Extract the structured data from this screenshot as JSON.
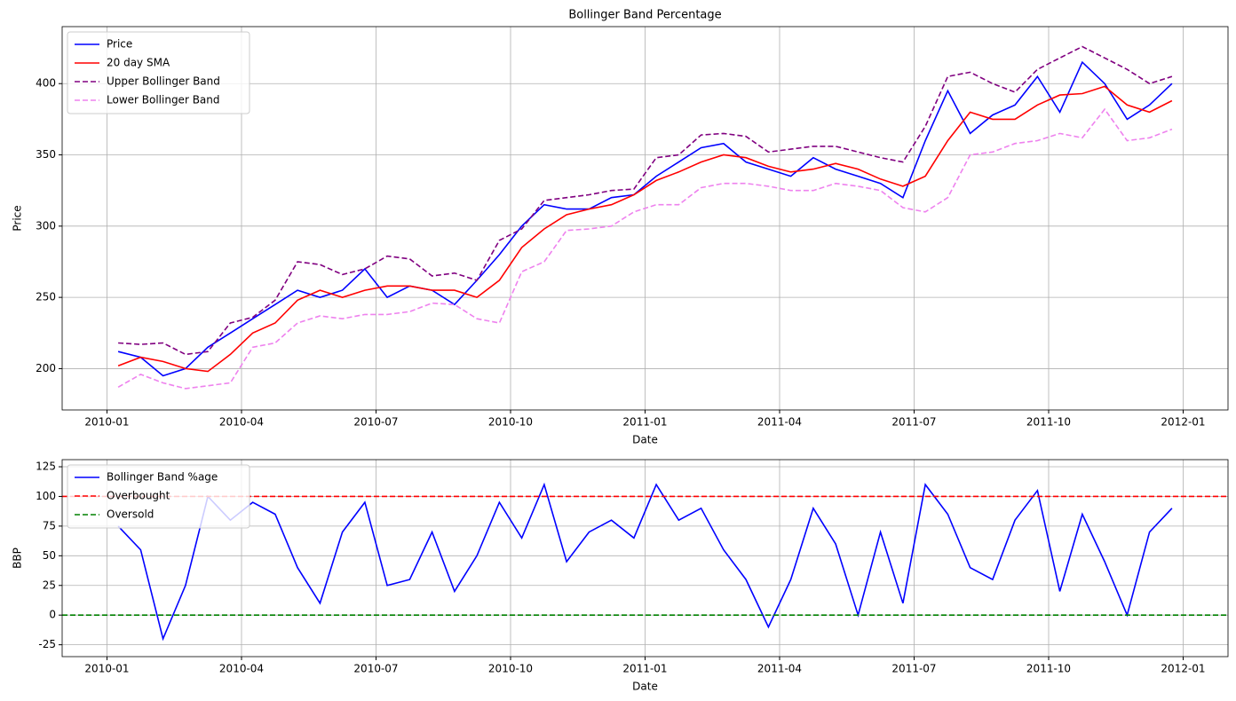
{
  "chart_data": [
    {
      "type": "line",
      "title": "Bollinger Band Percentage",
      "xlabel": "Date",
      "ylabel": "Price",
      "x": [
        "2010-01",
        "2010-01",
        "2010-02",
        "2010-02",
        "2010-03",
        "2010-03",
        "2010-04",
        "2010-04",
        "2010-05",
        "2010-05",
        "2010-06",
        "2010-06",
        "2010-07",
        "2010-07",
        "2010-08",
        "2010-08",
        "2010-09",
        "2010-09",
        "2010-10",
        "2010-10",
        "2010-11",
        "2010-11",
        "2010-12",
        "2010-12",
        "2011-01",
        "2011-01",
        "2011-02",
        "2011-02",
        "2011-03",
        "2011-03",
        "2011-04",
        "2011-04",
        "2011-05",
        "2011-05",
        "2011-06",
        "2011-06",
        "2011-07",
        "2011-07",
        "2011-08",
        "2011-08",
        "2011-09",
        "2011-09",
        "2011-10",
        "2011-10",
        "2011-11",
        "2011-11",
        "2011-12",
        "2011-12"
      ],
      "series": [
        {
          "name": "Price",
          "color": "#0000ff",
          "dash": false,
          "values": [
            212,
            208,
            195,
            200,
            215,
            225,
            235,
            245,
            255,
            250,
            255,
            270,
            250,
            258,
            255,
            245,
            262,
            280,
            300,
            315,
            312,
            312,
            320,
            322,
            335,
            345,
            355,
            358,
            345,
            340,
            335,
            348,
            340,
            335,
            330,
            320,
            360,
            395,
            365,
            378,
            385,
            405,
            380,
            415,
            400,
            375,
            385,
            400
          ]
        },
        {
          "name": "20 day SMA",
          "color": "#ff0000",
          "dash": false,
          "values": [
            202,
            208,
            205,
            200,
            198,
            210,
            225,
            232,
            248,
            255,
            250,
            255,
            258,
            258,
            255,
            255,
            250,
            262,
            285,
            298,
            308,
            312,
            315,
            322,
            332,
            338,
            345,
            350,
            348,
            342,
            338,
            340,
            344,
            340,
            333,
            328,
            335,
            360,
            380,
            375,
            375,
            385,
            392,
            393,
            398,
            385,
            380,
            388
          ]
        },
        {
          "name": "Upper Bollinger Band",
          "color": "#800080",
          "dash": true,
          "values": [
            218,
            217,
            218,
            210,
            212,
            232,
            236,
            248,
            275,
            273,
            266,
            270,
            279,
            277,
            265,
            267,
            262,
            290,
            298,
            318,
            320,
            322,
            325,
            326,
            348,
            350,
            364,
            365,
            363,
            352,
            354,
            356,
            356,
            352,
            348,
            345,
            370,
            405,
            408,
            400,
            394,
            410,
            418,
            426,
            418,
            410,
            400,
            405
          ]
        },
        {
          "name": "Lower Bollinger Band",
          "color": "#ee82ee",
          "dash": true,
          "values": [
            187,
            196,
            190,
            186,
            188,
            190,
            215,
            218,
            232,
            237,
            235,
            238,
            238,
            240,
            246,
            245,
            235,
            232,
            268,
            275,
            297,
            298,
            300,
            310,
            315,
            315,
            327,
            330,
            330,
            328,
            325,
            325,
            330,
            328,
            325,
            313,
            310,
            320,
            350,
            352,
            358,
            360,
            365,
            362,
            382,
            360,
            362,
            368
          ]
        }
      ],
      "xlim": [
        "2009-12",
        "2012-02"
      ],
      "xticks": [
        "2010-01",
        "2010-04",
        "2010-07",
        "2010-10",
        "2011-01",
        "2011-04",
        "2011-07",
        "2011-10",
        "2012-01"
      ],
      "ylim": [
        171,
        440
      ],
      "yticks": [
        200,
        250,
        300,
        350,
        400
      ],
      "grid": true,
      "legend": "upper left"
    },
    {
      "type": "line",
      "xlabel": "Date",
      "ylabel": "BBP",
      "x": [
        "2010-01",
        "2010-01",
        "2010-02",
        "2010-02",
        "2010-03",
        "2010-03",
        "2010-04",
        "2010-04",
        "2010-05",
        "2010-05",
        "2010-06",
        "2010-06",
        "2010-07",
        "2010-07",
        "2010-08",
        "2010-08",
        "2010-09",
        "2010-09",
        "2010-10",
        "2010-10",
        "2010-11",
        "2010-11",
        "2010-12",
        "2010-12",
        "2011-01",
        "2011-01",
        "2011-02",
        "2011-02",
        "2011-03",
        "2011-03",
        "2011-04",
        "2011-04",
        "2011-05",
        "2011-05",
        "2011-06",
        "2011-06",
        "2011-07",
        "2011-07",
        "2011-08",
        "2011-08",
        "2011-09",
        "2011-09",
        "2011-10",
        "2011-10",
        "2011-11",
        "2011-11",
        "2011-12",
        "2011-12"
      ],
      "series": [
        {
          "name": "Bollinger Band %age",
          "color": "#0000ff",
          "dash": false,
          "values": [
            75,
            55,
            -20,
            25,
            100,
            80,
            95,
            85,
            40,
            10,
            70,
            95,
            25,
            30,
            70,
            20,
            50,
            95,
            65,
            110,
            45,
            70,
            80,
            65,
            110,
            80,
            90,
            55,
            30,
            -10,
            30,
            90,
            60,
            0,
            70,
            10,
            110,
            85,
            40,
            30,
            80,
            105,
            20,
            85,
            45,
            0,
            70,
            90
          ]
        }
      ],
      "hlines": [
        {
          "name": "Overbought",
          "color": "#ff0000",
          "dash": true,
          "value": 100
        },
        {
          "name": "Oversold",
          "color": "#008000",
          "dash": true,
          "value": 0
        }
      ],
      "xlim": [
        "2009-12",
        "2012-02"
      ],
      "xticks": [
        "2010-01",
        "2010-04",
        "2010-07",
        "2010-10",
        "2011-01",
        "2011-04",
        "2011-07",
        "2011-10",
        "2012-01"
      ],
      "ylim": [
        -35,
        131
      ],
      "yticks": [
        -25,
        0,
        25,
        50,
        75,
        100,
        125
      ],
      "grid": true,
      "legend": "upper left"
    }
  ]
}
